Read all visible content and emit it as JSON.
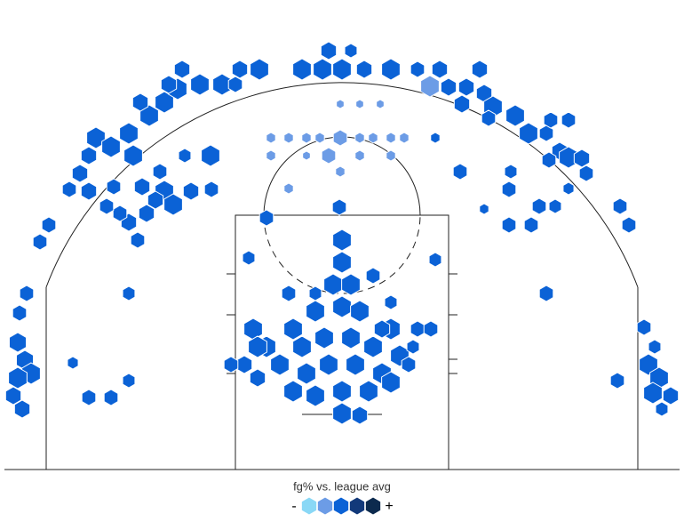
{
  "chart_data": {
    "type": "hexbin",
    "legend_title": "fg% vs. league avg",
    "legend_low": "-",
    "legend_high": "+",
    "legend_colors": [
      "#8ad8f6",
      "#6c9ce6",
      "#0b62d6",
      "#12397a",
      "#0c2a4e"
    ],
    "xlim": [
      -385,
      385
    ],
    "ylim": [
      -59,
      528
    ],
    "hexes": {
      "x": [
        0,
        0,
        -10,
        10,
        0,
        -30,
        20,
        -55,
        55,
        -100,
        -85,
        -70,
        -45,
        -20,
        10,
        35,
        -40,
        -15,
        15,
        45,
        65,
        -55,
        -30,
        0,
        30,
        55,
        0,
        20,
        -95,
        -110,
        -95,
        -125,
        75,
        45,
        35,
        85,
        100,
        80,
        -30,
        -60,
        -85,
        -3,
        105,
        -105,
        55,
        -277,
        -260,
        -240,
        -235,
        -285,
        -295,
        -285,
        -307,
        -217,
        -200,
        -185,
        -160,
        -135,
        -115,
        -93,
        -45,
        -22,
        0,
        25,
        55,
        85,
        110,
        155,
        -15,
        10,
        -180,
        -227,
        -195,
        -120,
        120,
        140,
        160,
        135,
        170,
        195,
        210,
        230,
        245,
        255,
        275,
        165,
        255,
        235,
        99,
        -2,
        -15,
        -80,
        -60,
        -40,
        -25,
        20,
        35,
        55,
        70,
        -2,
        20,
        43,
        -60,
        -80,
        -40,
        20,
        55,
        -2,
        -200,
        -190,
        -210,
        -220,
        -240,
        -250,
        -230,
        -170,
        -147,
        -148,
        -177,
        -205,
        -225,
        -257,
        -265,
        -330,
        -340,
        -355,
        -363,
        -365,
        -357,
        -350,
        -365,
        -370,
        -360,
        -285,
        -260,
        -240,
        -303,
        -240,
        133,
        188,
        188,
        222,
        213,
        240,
        313,
        323,
        230,
        310,
        340,
        345,
        357,
        350,
        370,
        360,
        352,
        270,
        233,
        190,
        105,
        160,
        255
      ],
      "y": [
        258,
        233,
        208,
        208,
        183,
        178,
        178,
        158,
        158,
        158,
        138,
        118,
        138,
        148,
        148,
        138,
        108,
        118,
        118,
        108,
        128,
        88,
        83,
        88,
        88,
        98,
        63,
        61,
        138,
        118,
        103,
        118,
        118,
        158,
        218,
        158,
        158,
        138,
        198,
        198,
        283,
        295,
        236,
        238,
        188,
        373,
        363,
        378,
        353,
        353,
        333,
        313,
        315,
        398,
        413,
        428,
        433,
        433,
        450,
        450,
        450,
        450,
        450,
        450,
        450,
        450,
        450,
        450,
        471,
        471,
        450,
        413,
        433,
        433,
        430,
        430,
        423,
        411,
        408,
        398,
        378,
        378,
        358,
        351,
        333,
        395,
        393,
        393,
        431,
        373,
        353,
        373,
        373,
        373,
        373,
        373,
        373,
        373,
        373,
        411,
        411,
        411,
        316,
        353,
        353,
        353,
        353,
        335,
        313,
        298,
        303,
        288,
        278,
        288,
        258,
        313,
        315,
        353,
        353,
        335,
        318,
        318,
        296,
        275,
        256,
        198,
        176,
        143,
        123,
        108,
        103,
        83,
        68,
        81,
        81,
        100,
        120,
        198,
        335,
        315,
        275,
        296,
        275,
        296,
        296,
        275,
        198,
        100,
        160,
        118,
        103,
        86,
        83,
        68,
        138,
        350,
        348,
        335,
        373,
        293,
        316
      ],
      "size": [
        12,
        12,
        12,
        12,
        12,
        12,
        12,
        12,
        12,
        12,
        12,
        12,
        12,
        12,
        12,
        12,
        12,
        12,
        12,
        12,
        12,
        12,
        12,
        12,
        12,
        12,
        12,
        10,
        12,
        10,
        10,
        9,
        9,
        10,
        9,
        9,
        9,
        8,
        8,
        9,
        9,
        9,
        8,
        8,
        8,
        12,
        12,
        12,
        12,
        10,
        10,
        10,
        9,
        12,
        12,
        12,
        12,
        12,
        10,
        12,
        12,
        12,
        12,
        10,
        12,
        9,
        10,
        10,
        10,
        8,
        10,
        10,
        10,
        9,
        10,
        10,
        10,
        10,
        12,
        12,
        12,
        9,
        10,
        12,
        9,
        9,
        9,
        9,
        12,
        9,
        9,
        6,
        6,
        6,
        6,
        6,
        6,
        6,
        6,
        5,
        5,
        5,
        6,
        6,
        5,
        6,
        6,
        6,
        12,
        12,
        10,
        10,
        10,
        9,
        9,
        10,
        9,
        12,
        8,
        9,
        10,
        9,
        9,
        9,
        9,
        9,
        9,
        11,
        11,
        12,
        12,
        10,
        10,
        9,
        9,
        8,
        7,
        8,
        9,
        9,
        9,
        9,
        9,
        8,
        9,
        9,
        9,
        9,
        9,
        12,
        12,
        12,
        10,
        8,
        8,
        10,
        9,
        8,
        6,
        6,
        7
      ],
      "level": [
        3,
        3,
        3,
        3,
        3,
        3,
        3,
        3,
        3,
        3,
        3,
        3,
        3,
        3,
        3,
        3,
        3,
        3,
        3,
        3,
        3,
        3,
        3,
        3,
        3,
        3,
        3,
        3,
        3,
        3,
        3,
        3,
        3,
        3,
        3,
        3,
        3,
        3,
        3,
        3,
        3,
        3,
        3,
        3,
        3,
        3,
        3,
        3,
        3,
        3,
        3,
        3,
        3,
        3,
        3,
        3,
        3,
        3,
        3,
        3,
        3,
        3,
        3,
        3,
        3,
        3,
        3,
        3,
        3,
        3,
        3,
        3,
        3,
        3,
        3,
        3,
        3,
        3,
        3,
        3,
        3,
        3,
        3,
        3,
        3,
        3,
        3,
        3,
        2,
        2,
        2,
        2,
        2,
        2,
        2,
        2,
        2,
        2,
        2,
        2,
        2,
        2,
        2,
        2,
        2,
        2,
        2,
        2,
        3,
        3,
        3,
        3,
        3,
        3,
        3,
        3,
        3,
        3,
        3,
        3,
        3,
        3,
        3,
        3,
        3,
        3,
        3,
        3,
        3,
        3,
        3,
        3,
        3,
        3,
        3,
        3,
        3,
        3,
        3,
        3,
        3,
        3,
        3,
        3,
        3,
        3,
        3,
        3,
        3,
        3,
        3,
        3,
        3,
        3,
        3,
        3,
        3,
        3,
        3,
        3,
        3
      ]
    }
  }
}
